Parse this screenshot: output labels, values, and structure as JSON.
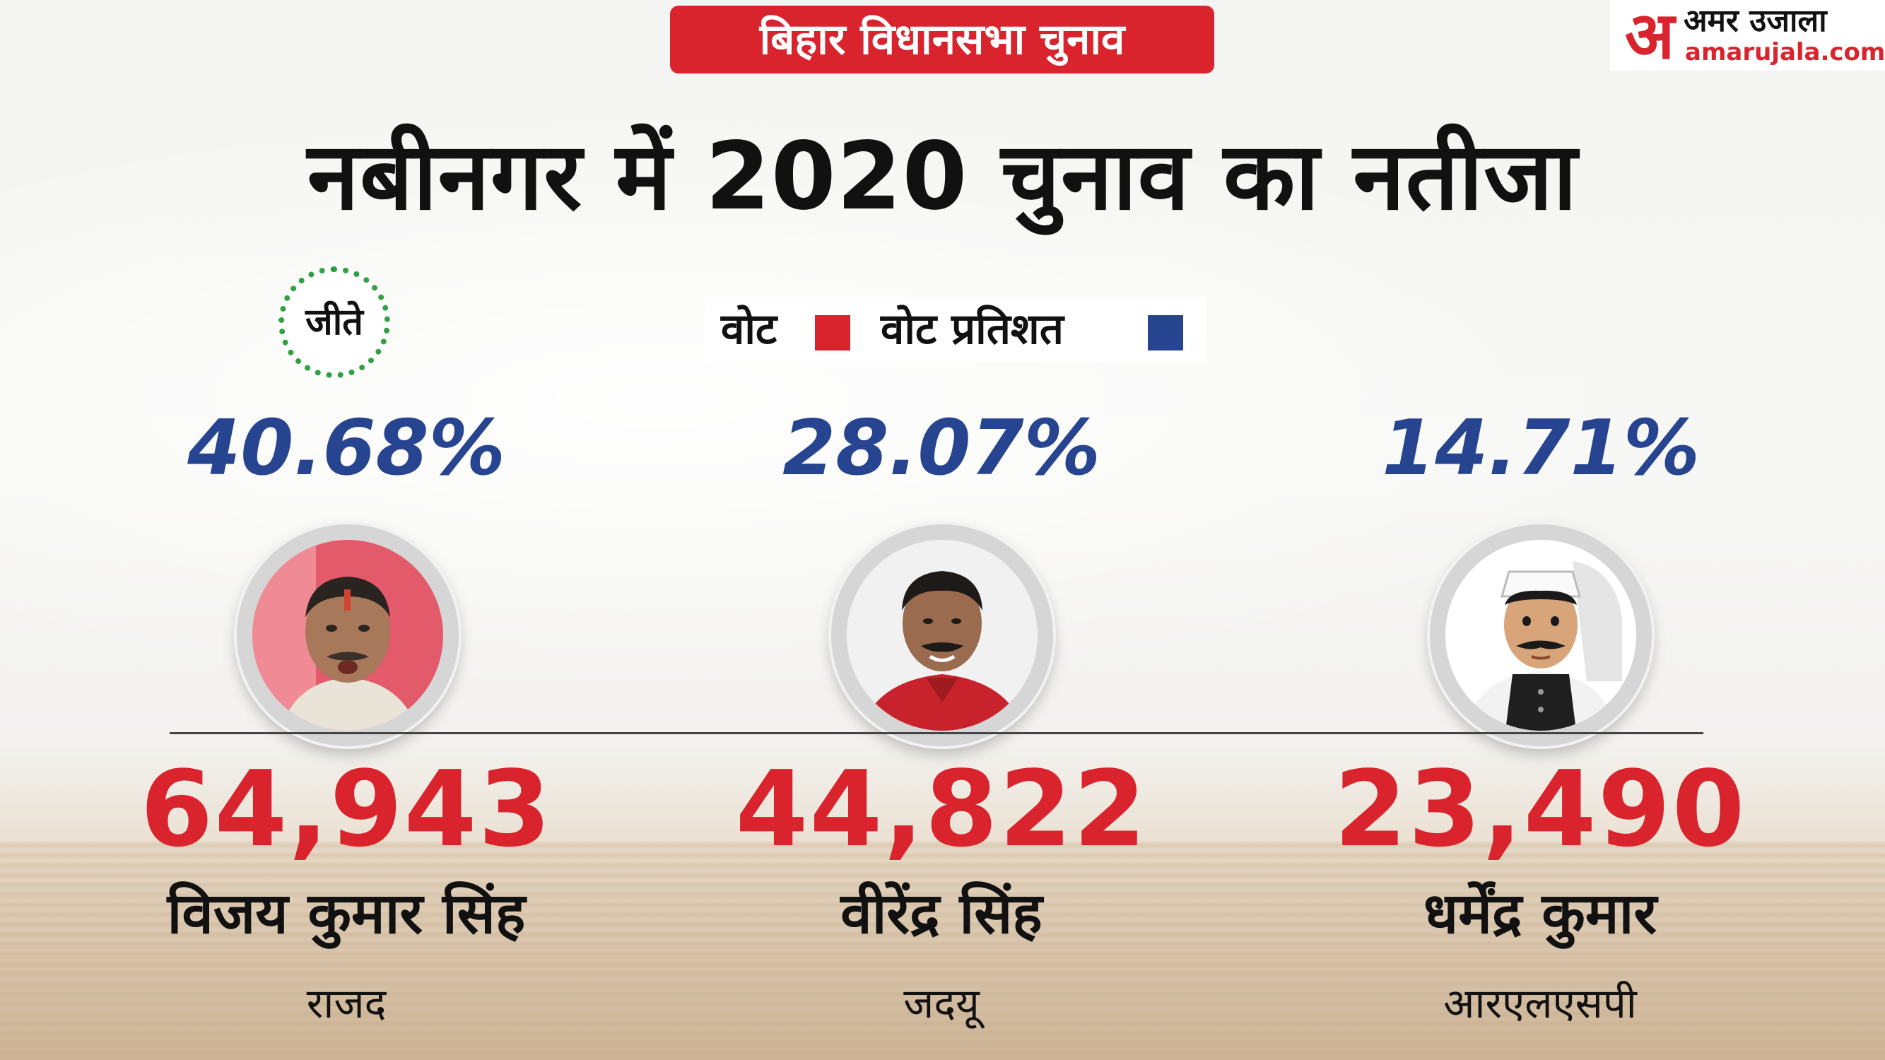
{
  "header": {
    "banner": "बिहार विधानसभा चुनाव",
    "logo": {
      "mark": "अ",
      "hindi": "अमर उजाला",
      "english": "amarujala.com"
    },
    "title": "नबीनगर में  2020 चुनाव का नतीजा"
  },
  "legend": {
    "votes_label": "वोट",
    "votes_color": "#d9232d",
    "percent_label": "वोट प्रतिशत",
    "percent_color": "#26448f"
  },
  "winner_badge": "जीते",
  "candidates": [
    {
      "percent": "40.68%",
      "votes": "64,943",
      "name": "विजय कुमार सिंह",
      "party": "राजद"
    },
    {
      "percent": "28.07%",
      "votes": "44,822",
      "name": "वीरेंद्र सिंह",
      "party": "जदयू"
    },
    {
      "percent": "14.71%",
      "votes": "23,490",
      "name": "धर्मेंद्र कुमार",
      "party": "आरएलएसपी"
    }
  ]
}
